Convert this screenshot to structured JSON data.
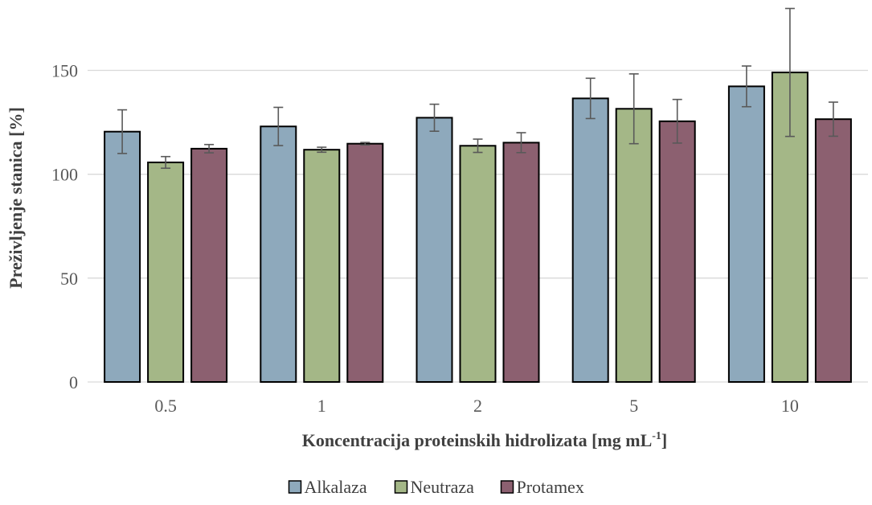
{
  "chart_data": {
    "type": "bar",
    "categories": [
      "0.5",
      "1",
      "2",
      "5",
      "10"
    ],
    "series": [
      {
        "name": "Alkalaza",
        "color": "#8EA9BC",
        "values": [
          120.5,
          123.0,
          127.2,
          136.5,
          142.3
        ],
        "errors": [
          10.5,
          9.2,
          6.5,
          9.7,
          9.8
        ]
      },
      {
        "name": "Neutraza",
        "color": "#A4B787",
        "values": [
          105.7,
          111.8,
          113.7,
          131.5,
          149.0
        ],
        "errors": [
          2.8,
          1.2,
          3.2,
          16.8,
          30.8
        ]
      },
      {
        "name": "Protamex",
        "color": "#8C6070",
        "values": [
          112.3,
          114.7,
          115.2,
          125.5,
          126.5
        ],
        "errors": [
          2.0,
          0.6,
          4.8,
          10.5,
          8.2
        ]
      }
    ],
    "xlabel": "Koncentracija proteinskih hidrolizata [mg mL",
    "xlabel_sup": "-1",
    "xlabel_end": "]",
    "ylabel": "Preživljenje stanica  [%]",
    "ylim": [
      0,
      180
    ],
    "yticks": [
      0,
      50,
      100,
      150
    ],
    "grid": true,
    "legend_position": "bottom-center"
  }
}
